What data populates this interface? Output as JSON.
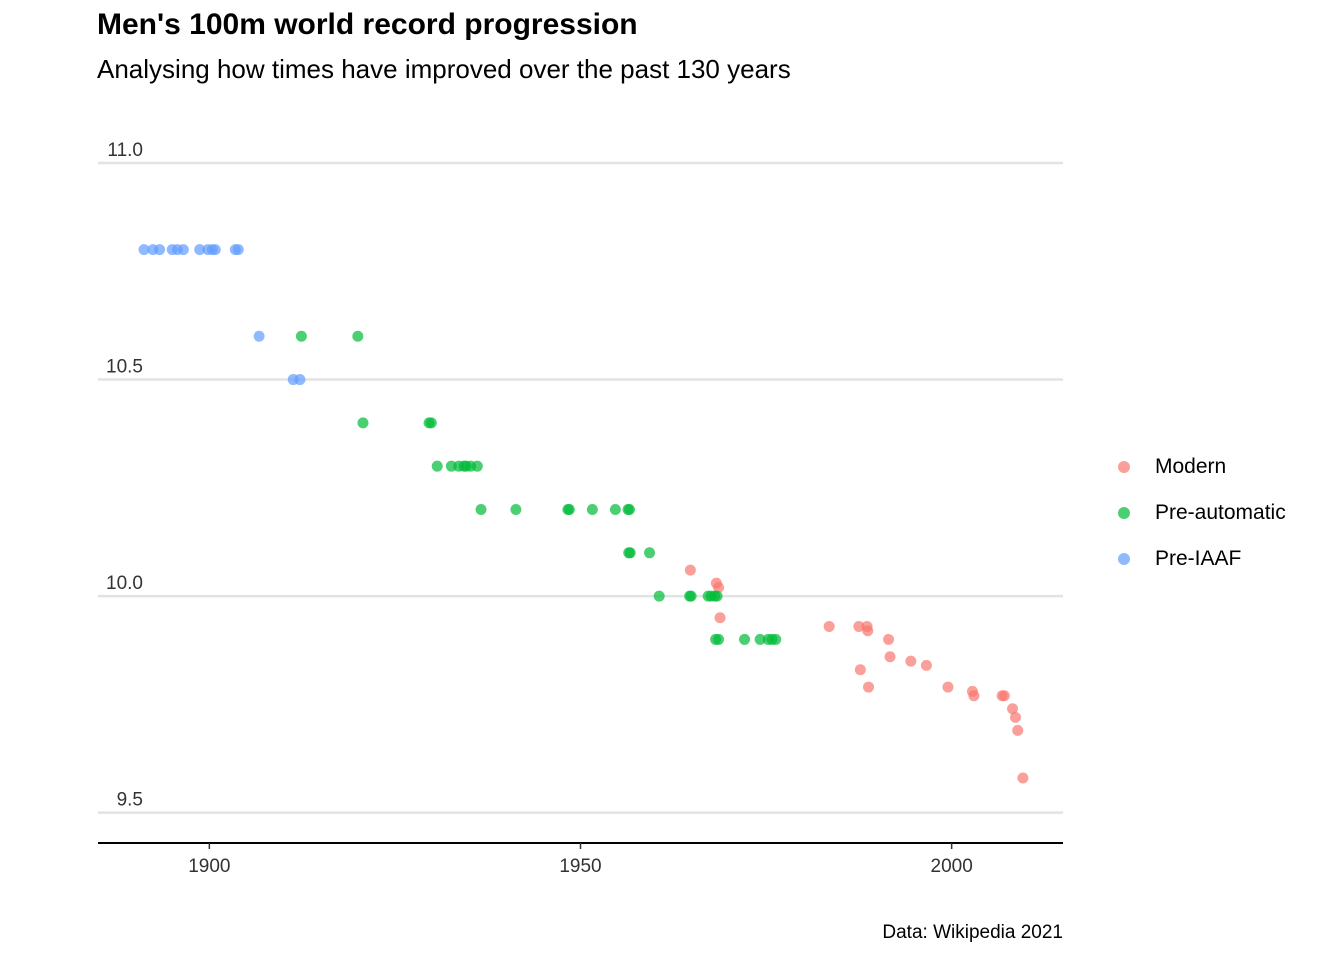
{
  "chart_data": {
    "type": "scatter",
    "title": "Men's 100m world record progression",
    "subtitle": "Analysing how times have improved over the past 130 years",
    "caption": "Data: Wikipedia 2021",
    "xlabel": "",
    "ylabel": "",
    "xlim": [
      1885,
      2015
    ],
    "ylim": [
      9.43,
      11.03
    ],
    "x_ticks": [
      1900,
      1950,
      2000
    ],
    "y_ticks": [
      9.5,
      10.0,
      10.5,
      11.0
    ],
    "x_tick_labels": [
      "1900",
      "1950",
      "2000"
    ],
    "y_tick_labels": [
      "9.5",
      "10.0",
      "10.5",
      "11.0"
    ],
    "grid": "horizontal major only",
    "legend_position": "right",
    "series": [
      {
        "name": "Modern",
        "color": "#F8766D",
        "x": [
          1964.8,
          1968.3,
          1968.6,
          1968.8,
          1983.5,
          1987.5,
          1987.7,
          1988.6,
          1988.7,
          1988.8,
          1991.5,
          1991.7,
          1994.5,
          1996.6,
          1999.5,
          2002.8,
          2003.0,
          2006.8,
          2007.1,
          2008.2,
          2008.6,
          2008.9,
          2009.6
        ],
        "y": [
          10.06,
          10.03,
          10.02,
          9.95,
          9.93,
          9.93,
          9.83,
          9.93,
          9.92,
          9.79,
          9.9,
          9.86,
          9.85,
          9.84,
          9.79,
          9.78,
          9.77,
          9.77,
          9.77,
          9.74,
          9.72,
          9.69,
          9.58
        ]
      },
      {
        "name": "Pre-automatic",
        "color": "#00BA38",
        "x": [
          1912.4,
          1920.0,
          1920.7,
          1929.6,
          1929.9,
          1930.7,
          1932.6,
          1933.6,
          1934.3,
          1934.6,
          1935.2,
          1936.1,
          1936.6,
          1941.3,
          1948.3,
          1948.5,
          1951.6,
          1954.7,
          1956.4,
          1956.6,
          1956.5,
          1956.7,
          1959.3,
          1960.6,
          1964.7,
          1964.9,
          1967.2,
          1967.6,
          1968.1,
          1968.4,
          1968.2,
          1968.6,
          1972.1,
          1974.2,
          1975.3,
          1975.8,
          1976.3
        ],
        "y": [
          10.6,
          10.6,
          10.4,
          10.4,
          10.4,
          10.3,
          10.3,
          10.3,
          10.3,
          10.3,
          10.3,
          10.3,
          10.2,
          10.2,
          10.2,
          10.2,
          10.2,
          10.2,
          10.2,
          10.2,
          10.1,
          10.1,
          10.1,
          10.0,
          10.0,
          10.0,
          10.0,
          10.0,
          10.0,
          10.0,
          9.9,
          9.9,
          9.9,
          9.9,
          9.9,
          9.9,
          9.9
        ]
      },
      {
        "name": "Pre-IAAF",
        "color": "#619CFF",
        "x": [
          1891.2,
          1892.4,
          1893.3,
          1895.0,
          1895.7,
          1896.5,
          1898.7,
          1899.8,
          1900.4,
          1900.8,
          1903.5,
          1903.9,
          1906.7,
          1911.3,
          1912.2
        ],
        "y": [
          10.8,
          10.8,
          10.8,
          10.8,
          10.8,
          10.8,
          10.8,
          10.8,
          10.8,
          10.8,
          10.8,
          10.8,
          10.6,
          10.5,
          10.5
        ]
      }
    ]
  }
}
